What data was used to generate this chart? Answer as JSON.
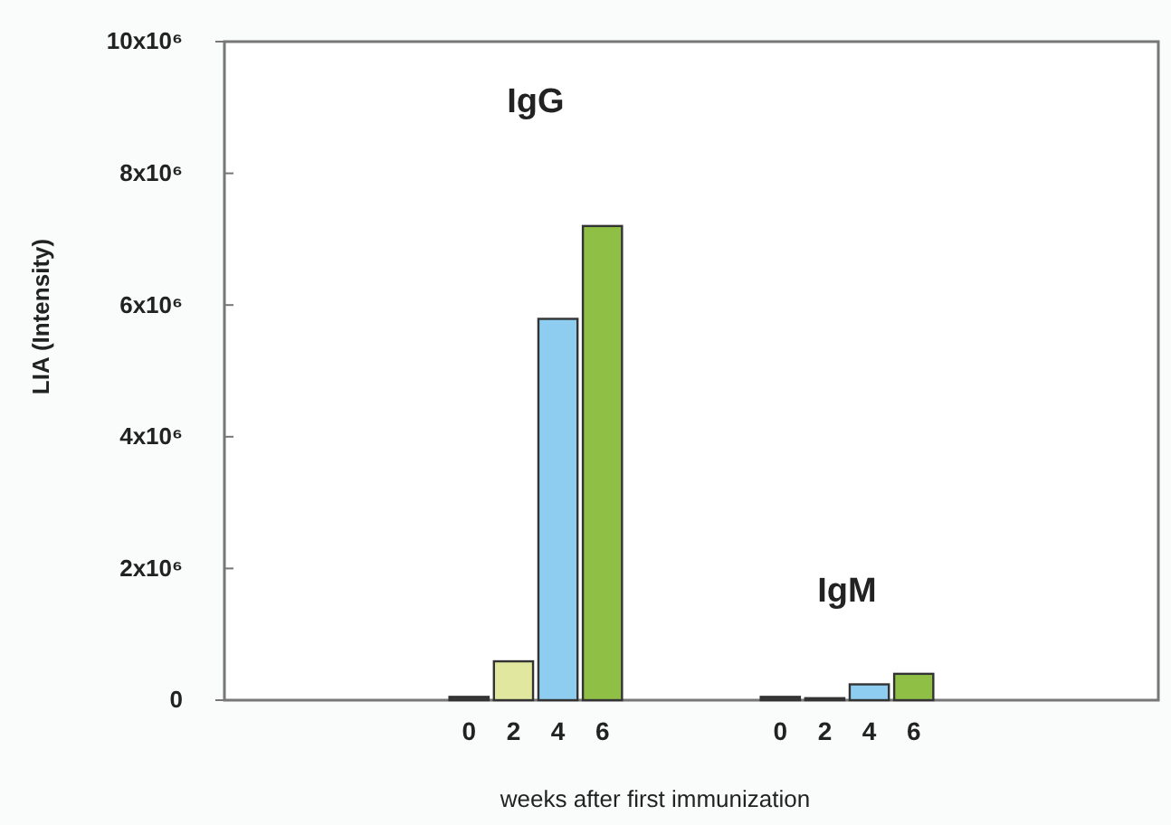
{
  "chart_data": {
    "type": "bar",
    "xlabel": "weeks after first immunization",
    "ylabel": "LIA (Intensity)",
    "categories": [
      null,
      null,
      null,
      null,
      null,
      "0",
      "2",
      "4",
      "6",
      null,
      null,
      null,
      "0",
      "2",
      "4",
      "6",
      null,
      null,
      null,
      null,
      null
    ],
    "values": [
      null,
      null,
      null,
      null,
      null,
      50000,
      590000,
      5790000,
      7200000,
      null,
      null,
      null,
      50000,
      30000,
      240000,
      400000,
      null,
      null,
      null,
      null,
      null
    ],
    "colors": [
      null,
      null,
      null,
      null,
      null,
      "#3a3a3a",
      "#e2e7a0",
      "#8ecdf0",
      "#8fbf45",
      null,
      null,
      null,
      "#3a3a3a",
      "#e2e7a0",
      "#8ecdf0",
      "#8fbf45",
      null,
      null,
      null,
      null,
      null
    ],
    "ylim": [
      0,
      10000000
    ],
    "yticks": [
      0,
      {
        "value": 2000000,
        "label": "2x10⁶"
      },
      {
        "value": 4000000,
        "label": "4x10⁶"
      },
      {
        "value": 6000000,
        "label": "6x10⁶"
      },
      {
        "value": 8000000,
        "label": "8x10⁶"
      },
      {
        "value": 10000000,
        "label": "10x10⁶"
      }
    ],
    "annotations": [
      "IgG",
      "IgM"
    ],
    "grid": false
  }
}
